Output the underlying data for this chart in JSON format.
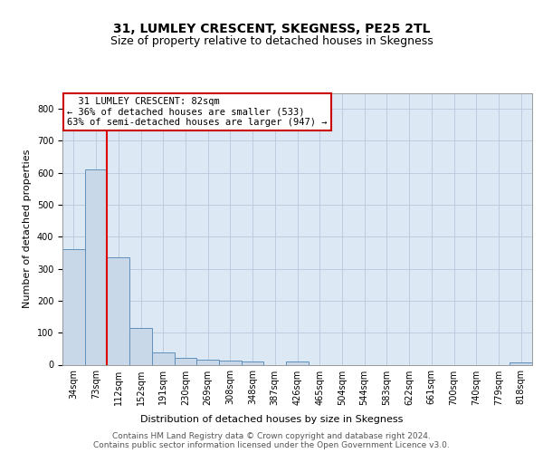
{
  "title": "31, LUMLEY CRESCENT, SKEGNESS, PE25 2TL",
  "subtitle": "Size of property relative to detached houses in Skegness",
  "xlabel": "Distribution of detached houses by size in Skegness",
  "ylabel": "Number of detached properties",
  "footer_line1": "Contains HM Land Registry data © Crown copyright and database right 2024.",
  "footer_line2": "Contains public sector information licensed under the Open Government Licence v3.0.",
  "annotation_line1": "  31 LUMLEY CRESCENT: 82sqm",
  "annotation_line2": "← 36% of detached houses are smaller (533)",
  "annotation_line3": "63% of semi-detached houses are larger (947) →",
  "bin_labels": [
    "34sqm",
    "73sqm",
    "112sqm",
    "152sqm",
    "191sqm",
    "230sqm",
    "269sqm",
    "308sqm",
    "348sqm",
    "387sqm",
    "426sqm",
    "465sqm",
    "504sqm",
    "544sqm",
    "583sqm",
    "622sqm",
    "661sqm",
    "700sqm",
    "740sqm",
    "779sqm",
    "818sqm"
  ],
  "bar_values": [
    360,
    611,
    337,
    114,
    37,
    20,
    15,
    13,
    10,
    0,
    10,
    0,
    0,
    0,
    0,
    0,
    0,
    0,
    0,
    0,
    8
  ],
  "bar_color": "#c8d8e8",
  "bar_edge_color": "#6090bb",
  "grid_color": "#b8c8dc",
  "background_color": "#dce8f4",
  "marker_line_color": "#dd0000",
  "ylim": [
    0,
    850
  ],
  "yticks": [
    0,
    100,
    200,
    300,
    400,
    500,
    600,
    700,
    800
  ],
  "title_fontsize": 10,
  "subtitle_fontsize": 9,
  "axis_label_fontsize": 8,
  "tick_fontsize": 7,
  "annotation_fontsize": 7.5,
  "footer_fontsize": 6.5
}
